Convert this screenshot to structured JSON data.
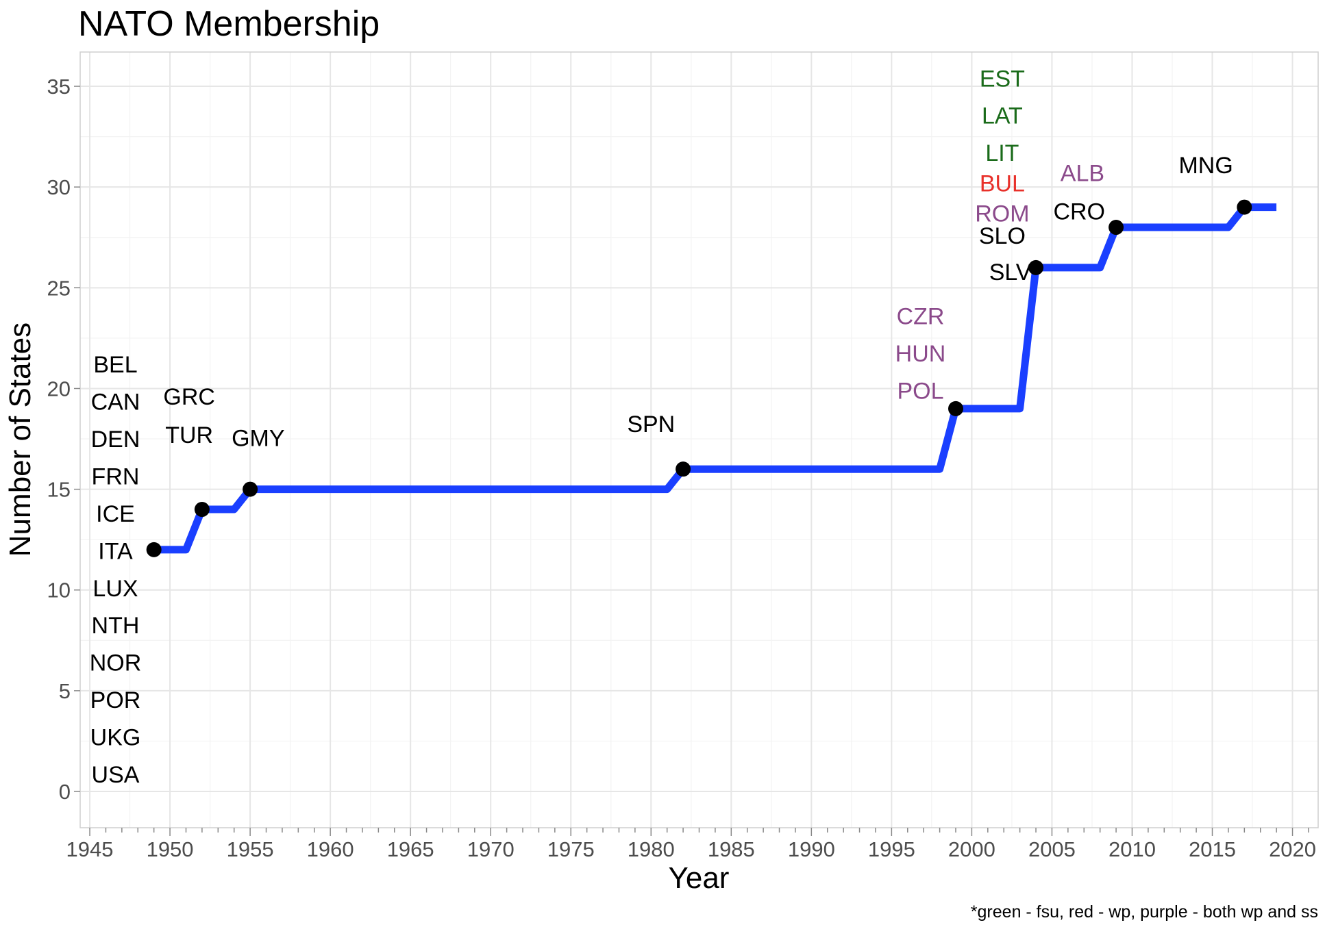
{
  "chart_data": {
    "type": "line",
    "title": "NATO Membership",
    "xlabel": "Year",
    "ylabel": "Number of States",
    "caption": "*green - fsu, red - wp, purple - both wp and ss",
    "xlim": [
      1944.4,
      2021.6
    ],
    "ylim": [
      -1.8,
      36.7
    ],
    "x_ticks": [
      1945,
      1950,
      1955,
      1960,
      1965,
      1970,
      1975,
      1980,
      1985,
      1990,
      1995,
      2000,
      2005,
      2010,
      2015,
      2020
    ],
    "y_ticks": [
      0,
      5,
      10,
      15,
      20,
      25,
      30,
      35
    ],
    "grid": true,
    "line_color": "#1a3fff",
    "line": [
      {
        "x": 1949,
        "y": 12
      },
      {
        "x": 1951,
        "y": 12
      },
      {
        "x": 1952,
        "y": 14
      },
      {
        "x": 1954,
        "y": 14
      },
      {
        "x": 1955,
        "y": 15
      },
      {
        "x": 1981,
        "y": 15
      },
      {
        "x": 1982,
        "y": 16
      },
      {
        "x": 1998,
        "y": 16
      },
      {
        "x": 1999,
        "y": 19
      },
      {
        "x": 2003,
        "y": 19
      },
      {
        "x": 2004,
        "y": 26
      },
      {
        "x": 2008,
        "y": 26
      },
      {
        "x": 2009,
        "y": 28
      },
      {
        "x": 2016,
        "y": 28
      },
      {
        "x": 2017,
        "y": 29
      },
      {
        "x": 2019,
        "y": 29
      }
    ],
    "points": [
      {
        "x": 1949,
        "y": 12
      },
      {
        "x": 1952,
        "y": 14
      },
      {
        "x": 1955,
        "y": 15
      },
      {
        "x": 1982,
        "y": 16
      },
      {
        "x": 1999,
        "y": 19
      },
      {
        "x": 2004,
        "y": 26
      },
      {
        "x": 2009,
        "y": 28
      },
      {
        "x": 2017,
        "y": 29
      }
    ],
    "colors": {
      "none": "#000000",
      "fsu": "#1a6b1a",
      "wp": "#e8302a",
      "both": "#8b4a8b"
    },
    "labels": [
      {
        "text": "BEL",
        "x": 1946.6,
        "y": 21.2,
        "group": "none"
      },
      {
        "text": "CAN",
        "x": 1946.6,
        "y": 19.35,
        "group": "none"
      },
      {
        "text": "DEN",
        "x": 1946.6,
        "y": 17.5,
        "group": "none"
      },
      {
        "text": "FRN",
        "x": 1946.6,
        "y": 15.65,
        "group": "none"
      },
      {
        "text": "ICE",
        "x": 1946.6,
        "y": 13.8,
        "group": "none"
      },
      {
        "text": "ITA",
        "x": 1946.6,
        "y": 11.95,
        "group": "none"
      },
      {
        "text": "LUX",
        "x": 1946.6,
        "y": 10.1,
        "group": "none"
      },
      {
        "text": "NTH",
        "x": 1946.6,
        "y": 8.25,
        "group": "none"
      },
      {
        "text": "NOR",
        "x": 1946.6,
        "y": 6.4,
        "group": "none"
      },
      {
        "text": "POR",
        "x": 1946.6,
        "y": 4.55,
        "group": "none"
      },
      {
        "text": "UKG",
        "x": 1946.6,
        "y": 2.7,
        "group": "none"
      },
      {
        "text": "USA",
        "x": 1946.6,
        "y": 0.85,
        "group": "none"
      },
      {
        "text": "GRC",
        "x": 1951.2,
        "y": 19.6,
        "group": "none"
      },
      {
        "text": "TUR",
        "x": 1951.2,
        "y": 17.7,
        "group": "none"
      },
      {
        "text": "GMY",
        "x": 1955.5,
        "y": 17.55,
        "group": "none"
      },
      {
        "text": "SPN",
        "x": 1980.0,
        "y": 18.25,
        "group": "none"
      },
      {
        "text": "CZR",
        "x": 1996.8,
        "y": 23.6,
        "group": "both"
      },
      {
        "text": "HUN",
        "x": 1996.8,
        "y": 21.75,
        "group": "both"
      },
      {
        "text": "POL",
        "x": 1996.8,
        "y": 19.9,
        "group": "both"
      },
      {
        "text": "EST",
        "x": 2001.9,
        "y": 35.4,
        "group": "fsu"
      },
      {
        "text": "LAT",
        "x": 2001.9,
        "y": 33.55,
        "group": "fsu"
      },
      {
        "text": "LIT",
        "x": 2001.9,
        "y": 31.7,
        "group": "fsu"
      },
      {
        "text": "BUL",
        "x": 2001.9,
        "y": 30.2,
        "group": "wp"
      },
      {
        "text": "ROM",
        "x": 2001.9,
        "y": 28.7,
        "group": "both"
      },
      {
        "text": "SLO",
        "x": 2001.9,
        "y": 27.6,
        "group": "none"
      },
      {
        "text": "SLV",
        "x": 2002.4,
        "y": 25.8,
        "group": "none"
      },
      {
        "text": "CRO",
        "x": 2006.7,
        "y": 28.8,
        "group": "none"
      },
      {
        "text": "ALB",
        "x": 2006.9,
        "y": 30.7,
        "group": "both"
      },
      {
        "text": "MNG",
        "x": 2014.6,
        "y": 31.1,
        "group": "none"
      }
    ]
  }
}
